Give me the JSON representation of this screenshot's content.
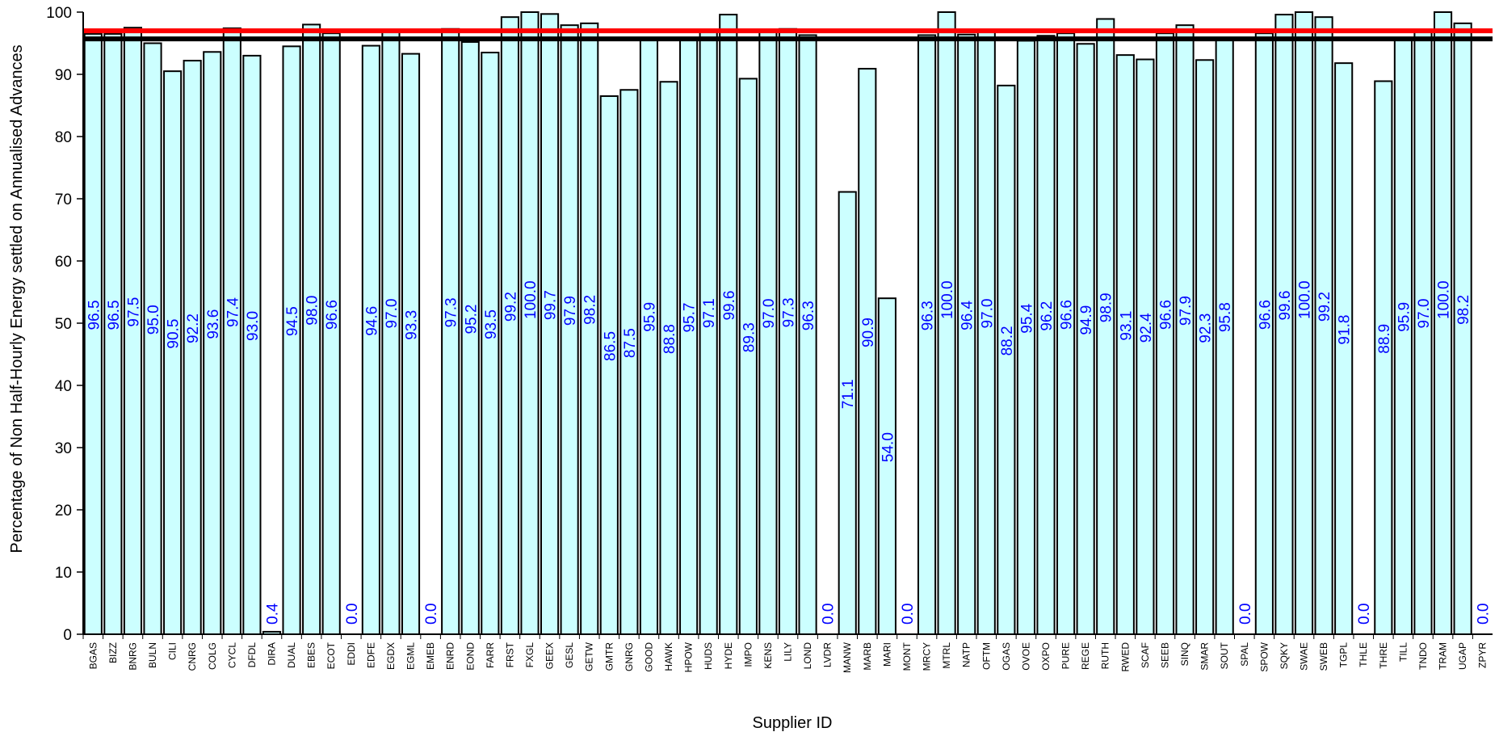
{
  "chart_data": {
    "type": "bar",
    "xlabel": "Supplier ID",
    "ylabel": "Percentage of Non Half-Hourly Energy settled on Annualised Advances",
    "ylim": [
      0,
      100
    ],
    "yticks": [
      0,
      10,
      20,
      30,
      40,
      50,
      60,
      70,
      80,
      90,
      100
    ],
    "grid": false,
    "categories": [
      "BGAS",
      "BIZZ",
      "BNRG",
      "BULN",
      "CILI",
      "CNRG",
      "COLG",
      "CYCL",
      "DFDL",
      "DIRA",
      "DUAL",
      "EBES",
      "ECOT",
      "EDDI",
      "EDFE",
      "EGDX",
      "EGML",
      "EMEB",
      "ENRD",
      "EOND",
      "FARR",
      "FRST",
      "FXGL",
      "GEEX",
      "GESL",
      "GETW",
      "GMTR",
      "GNRG",
      "GOOD",
      "HAWK",
      "HPOW",
      "HUDS",
      "HYDE",
      "IMPO",
      "KENS",
      "LILY",
      "LOND",
      "LVDR",
      "MANW",
      "MARB",
      "MARI",
      "MONT",
      "MRCY",
      "MTRL",
      "NATP",
      "OFTM",
      "OGAS",
      "OVOE",
      "OXPO",
      "PURE",
      "REGE",
      "RUTH",
      "RWED",
      "SCAF",
      "SEEB",
      "SINQ",
      "SMAR",
      "SOUT",
      "SPAL",
      "SPOW",
      "SQKY",
      "SWAE",
      "SWEB",
      "TGPL",
      "THLE",
      "THRE",
      "TILL",
      "TNDO",
      "TRAM",
      "UGAP",
      "ZPYR"
    ],
    "values": [
      96.5,
      96.5,
      97.5,
      95.0,
      90.5,
      92.2,
      93.6,
      97.4,
      93.0,
      0.4,
      94.5,
      98.0,
      96.6,
      0.0,
      94.6,
      97.0,
      93.3,
      0.0,
      97.3,
      95.2,
      93.5,
      99.2,
      100.0,
      99.7,
      97.9,
      98.2,
      86.5,
      87.5,
      95.9,
      88.8,
      95.7,
      97.1,
      99.6,
      89.3,
      97.0,
      97.3,
      96.3,
      0.0,
      71.1,
      90.9,
      54.0,
      0.0,
      96.3,
      100.0,
      96.4,
      97.0,
      88.2,
      95.4,
      96.2,
      96.6,
      94.9,
      98.9,
      93.1,
      92.4,
      96.6,
      97.9,
      92.3,
      95.8,
      0.0,
      96.6,
      99.6,
      100.0,
      99.2,
      91.8,
      0.0,
      88.9,
      95.9,
      97.0,
      100.0,
      98.2,
      0.0
    ],
    "data_labels": [
      "96.5",
      "96.5",
      "97.5",
      "95.0",
      "90.5",
      "92.2",
      "93.6",
      "97.4",
      "93.0",
      "0.4",
      "94.5",
      "98.0",
      "96.6",
      "0.0",
      "94.6",
      "97.0",
      "93.3",
      "0.0",
      "97.3",
      "95.2",
      "93.5",
      "99.2",
      "100.0",
      "99.7",
      "97.9",
      "98.2",
      "86.5",
      "87.5",
      "95.9",
      "88.8",
      "95.7",
      "97.1",
      "99.6",
      "89.3",
      "97.0",
      "97.3",
      "96.3",
      "0.0",
      "71.1",
      "90.9",
      "54.0",
      "0.0",
      "96.3",
      "100.0",
      "96.4",
      "97.0",
      "88.2",
      "95.4",
      "96.2",
      "96.6",
      "94.9",
      "98.9",
      "93.1",
      "92.4",
      "96.6",
      "97.9",
      "92.3",
      "95.8",
      "0.0",
      "96.6",
      "99.6",
      "100.0",
      "99.2",
      "91.8",
      "0.0",
      "88.9",
      "95.9",
      "97.0",
      "100.0",
      "98.2",
      "0.0"
    ],
    "reference_lines": [
      {
        "value": 97.0,
        "color": "#ff0000"
      },
      {
        "value": 95.7,
        "color": "#000000"
      }
    ],
    "colors": {
      "bar_fill": "#ccffff",
      "bar_stroke": "#000000",
      "data_label": "#0000ff"
    }
  }
}
